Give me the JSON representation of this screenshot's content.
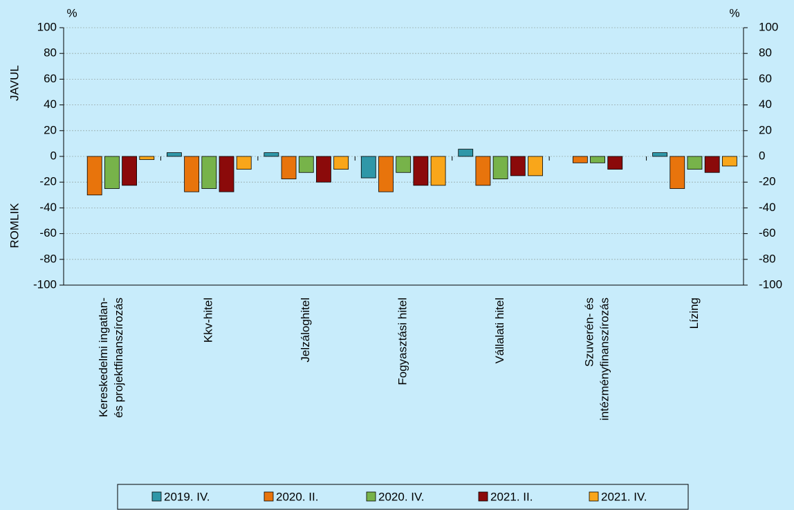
{
  "chart_data": {
    "type": "bar",
    "y_unit": "%",
    "y2_unit": "%",
    "annotations": [
      "JAVUL",
      "ROMLIK"
    ],
    "categories": [
      "Kereskedelmi ingatlan-\nés projektfinanszírozás",
      "Kkv-hitel",
      "Jelzáloghitel",
      "Fogyasztási hitel",
      "Vállalati hitel",
      "Szuverén- és\nintézményfinanszírozás",
      "Lízing"
    ],
    "series": [
      {
        "name": "2019. IV.",
        "color": "#2f97a8",
        "values": [
          0,
          2.9,
          2.9,
          -16.7,
          5.6,
          0,
          2.9
        ]
      },
      {
        "name": "2020. II.",
        "color": "#e8740c",
        "values": [
          -30,
          -27.5,
          -17.5,
          -27.5,
          -22.5,
          -5,
          -25
        ]
      },
      {
        "name": "2020. IV.",
        "color": "#77b34a",
        "values": [
          -25,
          -25,
          -12.5,
          -12.5,
          -17.5,
          -5,
          -10
        ]
      },
      {
        "name": "2021. II.",
        "color": "#8b0a0a",
        "values": [
          -22.5,
          -27.5,
          -20,
          -22.5,
          -15,
          -10,
          -12.5
        ]
      },
      {
        "name": "2021. IV.",
        "color": "#f9a61a",
        "values": [
          -2.5,
          -10,
          -10,
          -22.5,
          -15,
          0,
          -7.5
        ]
      }
    ],
    "ylim": [
      -100,
      100
    ],
    "yticks": [
      -100,
      -80,
      -60,
      -40,
      -20,
      0,
      20,
      40,
      60,
      80,
      100
    ],
    "y2lim": [
      -100,
      100
    ],
    "y2ticks": [
      -100,
      -80,
      -60,
      -40,
      -20,
      0,
      20,
      40,
      60,
      80,
      100
    ],
    "grid": true,
    "legend": "bottom"
  }
}
